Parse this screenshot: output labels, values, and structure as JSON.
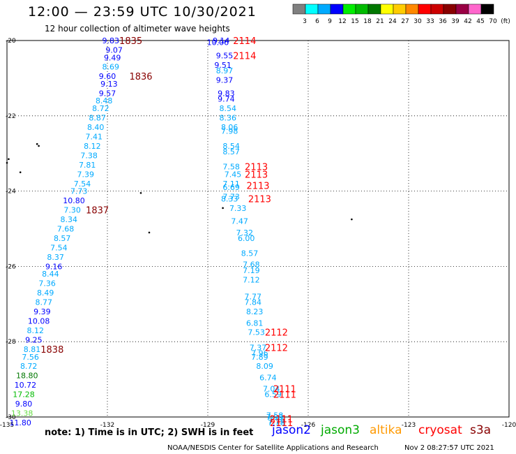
{
  "header": {
    "title": "12:00 — 23:59 UTC 10/30/2021",
    "subtitle": "12 hour collection of altimeter wave heights"
  },
  "colorbar": {
    "labels": [
      "3",
      "6",
      "9",
      "12",
      "15",
      "18",
      "21",
      "24",
      "27",
      "30",
      "33",
      "36",
      "39",
      "42",
      "45",
      "70",
      "(ft)"
    ],
    "colors": [
      "#808080",
      "#00ffff",
      "#00aaff",
      "#0000ff",
      "#00ee00",
      "#00bb00",
      "#007700",
      "#ffff00",
      "#ffcc00",
      "#ff8800",
      "#ff0000",
      "#cc0000",
      "#880000",
      "#990044",
      "#ff66cc",
      "#000000"
    ]
  },
  "footer": {
    "note": "note:  1) Time is in UTC;  2) SWH is in feet",
    "missions": [
      {
        "name": "jason2",
        "color": "#0000ff"
      },
      {
        "name": "jason3",
        "color": "#00aa00"
      },
      {
        "name": "altika",
        "color": "#ff9900"
      },
      {
        "name": "cryosat",
        "color": "#ff0000"
      },
      {
        "name": "s3a",
        "color": "#880000"
      }
    ],
    "credit": "NOAA/NESDIS Center for Satellite Applications and Research",
    "generated": "Nov  2 08:27:57 UTC 2021"
  },
  "chart_data": {
    "type": "scatter",
    "title": "12:00 — 23:59 UTC 10/30/2021",
    "subtitle": "12 hour collection of altimeter wave heights",
    "xlabel": "",
    "ylabel": "",
    "xlim": [
      -135,
      -120
    ],
    "ylim": [
      -30,
      -20
    ],
    "x_ticks": [
      -135,
      -132,
      -129,
      -126,
      -123,
      -120
    ],
    "x_tick_labels": [
      "-135",
      "-132",
      "-129",
      "-126",
      "-123",
      "-120"
    ],
    "y_ticks": [
      -30,
      -28,
      -26,
      -24,
      -22,
      -20
    ],
    "y_tick_labels": [
      "-30",
      "-28",
      "-26",
      "-24",
      "-22",
      "-20"
    ],
    "grid": true,
    "units": "ft",
    "series": [
      {
        "name": "track_west",
        "points": [
          [
            -131.9,
            -20.0,
            "9.83",
            "#0000ff"
          ],
          [
            -131.8,
            -20.25,
            "9.07",
            "#0000ff"
          ],
          [
            -131.85,
            -20.45,
            "9.49",
            "#0000ff"
          ],
          [
            -131.9,
            -20.7,
            "8.69",
            "#00aaff"
          ],
          [
            -132.0,
            -20.95,
            "9.60",
            "#0000ff"
          ],
          [
            -131.95,
            -21.15,
            "9.13",
            "#0000ff"
          ],
          [
            -132.0,
            -21.4,
            "9.57",
            "#0000ff"
          ],
          [
            -132.1,
            -21.6,
            "8.48",
            "#00aaff"
          ],
          [
            -132.2,
            -21.8,
            "8.72",
            "#00aaff"
          ],
          [
            -132.3,
            -22.05,
            "8.87",
            "#00aaff"
          ],
          [
            -132.35,
            -22.3,
            "8.40",
            "#00aaff"
          ],
          [
            -132.4,
            -22.55,
            "7.41",
            "#00aaff"
          ],
          [
            -132.45,
            -22.8,
            "8.12",
            "#00aaff"
          ],
          [
            -132.55,
            -23.05,
            "7.38",
            "#00aaff"
          ],
          [
            -132.6,
            -23.3,
            "7.81",
            "#00aaff"
          ],
          [
            -132.65,
            -23.55,
            "7.39",
            "#00aaff"
          ],
          [
            -132.75,
            -23.8,
            "7.54",
            "#00aaff"
          ],
          [
            -132.85,
            -24.0,
            "7.73",
            "#00aaff"
          ],
          [
            -133.0,
            -24.25,
            "10.80",
            "#0000ff"
          ],
          [
            -133.05,
            -24.5,
            "7.30",
            "#00aaff"
          ],
          [
            -133.15,
            -24.75,
            "8.34",
            "#00aaff"
          ],
          [
            -133.25,
            -25.0,
            "7.68",
            "#00aaff"
          ],
          [
            -133.35,
            -25.25,
            "8.57",
            "#00aaff"
          ],
          [
            -133.45,
            -25.5,
            "7.54",
            "#00aaff"
          ],
          [
            -133.55,
            -25.75,
            "8.37",
            "#00aaff"
          ],
          [
            -133.6,
            -26.0,
            "9.16",
            "#0000ff"
          ],
          [
            -133.7,
            -26.2,
            "8.44",
            "#00aaff"
          ],
          [
            -133.8,
            -26.45,
            "7.36",
            "#00aaff"
          ],
          [
            -133.85,
            -26.7,
            "8.49",
            "#00aaff"
          ],
          [
            -133.9,
            -26.95,
            "8.77",
            "#00aaff"
          ],
          [
            -133.95,
            -27.2,
            "9.39",
            "#0000ff"
          ],
          [
            -134.05,
            -27.45,
            "10.08",
            "#0000ff"
          ],
          [
            -134.15,
            -27.7,
            "8.12",
            "#00aaff"
          ],
          [
            -134.2,
            -27.95,
            "9.25",
            "#0000ff"
          ],
          [
            -134.25,
            -28.2,
            "8.81",
            "#00aaff"
          ],
          [
            -134.3,
            -28.4,
            "7.56",
            "#00aaff"
          ],
          [
            -134.35,
            -28.65,
            "8.72",
            "#00aaff"
          ],
          [
            -134.4,
            -28.9,
            "18.80",
            "#007700"
          ],
          [
            -134.45,
            -29.15,
            "10.72",
            "#0000ff"
          ],
          [
            -134.5,
            -29.4,
            "17.28",
            "#00bb00"
          ],
          [
            -134.5,
            -29.65,
            "9.80",
            "#0000ff"
          ],
          [
            -134.55,
            -29.9,
            "13.38",
            "#66dd44"
          ],
          [
            -134.6,
            -30.15,
            "11.80",
            "#0000ff"
          ]
        ]
      },
      {
        "name": "track_east",
        "points": [
          [
            -128.6,
            -20.0,
            "9.14",
            "#0000ff"
          ],
          [
            -128.7,
            -20.05,
            "10.06",
            "#0000ff"
          ],
          [
            -128.5,
            -20.4,
            "9.55",
            "#0000ff"
          ],
          [
            -128.55,
            -20.65,
            "9.51",
            "#0000ff"
          ],
          [
            -128.5,
            -20.8,
            "8.97",
            "#00aaff"
          ],
          [
            -128.5,
            -21.05,
            "9.37",
            "#0000ff"
          ],
          [
            -128.45,
            -21.4,
            "9.83",
            "#0000ff"
          ],
          [
            -128.45,
            -21.55,
            "9.74",
            "#0000ff"
          ],
          [
            -128.4,
            -21.8,
            "8.54",
            "#00aaff"
          ],
          [
            -128.4,
            -22.05,
            "8.36",
            "#00aaff"
          ],
          [
            -128.35,
            -22.3,
            "8.06",
            "#00aaff"
          ],
          [
            -128.35,
            -22.4,
            "7.98",
            "#00aaff"
          ],
          [
            -128.3,
            -22.8,
            "8.54",
            "#00aaff"
          ],
          [
            -128.3,
            -22.95,
            "8.57",
            "#00aaff"
          ],
          [
            -128.3,
            -23.35,
            "7.58",
            "#00aaff"
          ],
          [
            -128.25,
            -23.55,
            "7.45",
            "#00aaff"
          ],
          [
            -128.3,
            -23.8,
            "7.11",
            "#00aaff"
          ],
          [
            -128.3,
            -23.9,
            "6.69",
            "#00aaff"
          ],
          [
            -128.3,
            -24.15,
            "7.73",
            "#00aaff"
          ],
          [
            -128.35,
            -24.2,
            "8.33",
            "#00aaff"
          ],
          [
            -128.1,
            -24.45,
            "7.33",
            "#00aaff"
          ],
          [
            -128.05,
            -24.8,
            "7.47",
            "#00aaff"
          ],
          [
            -127.9,
            -25.1,
            "7.32",
            "#00aaff"
          ],
          [
            -127.85,
            -25.25,
            "6.00",
            "#00aaff"
          ],
          [
            -127.75,
            -25.65,
            "8.57",
            "#00aaff"
          ],
          [
            -127.7,
            -25.95,
            "7.68",
            "#00aaff"
          ],
          [
            -127.7,
            -26.1,
            "7.19",
            "#00aaff"
          ],
          [
            -127.7,
            -26.35,
            "7.12",
            "#00aaff"
          ],
          [
            -127.65,
            -26.8,
            "7.77",
            "#00aaff"
          ],
          [
            -127.65,
            -26.95,
            "7.84",
            "#00aaff"
          ],
          [
            -127.6,
            -27.2,
            "8.23",
            "#00aaff"
          ],
          [
            -127.6,
            -27.5,
            "6.81",
            "#00aaff"
          ],
          [
            -127.55,
            -27.75,
            "7.53",
            "#00aaff"
          ],
          [
            -127.5,
            -28.15,
            "7.37",
            "#00aaff"
          ],
          [
            -127.45,
            -28.3,
            "7.96",
            "#00aaff"
          ],
          [
            -127.45,
            -28.4,
            "7.89",
            "#00aaff"
          ],
          [
            -127.3,
            -28.65,
            "8.09",
            "#00aaff"
          ],
          [
            -127.2,
            -28.95,
            "6.74",
            "#00aaff"
          ],
          [
            -127.1,
            -29.25,
            "7.04",
            "#00aaff"
          ],
          [
            -127.05,
            -29.4,
            "6.59",
            "#00aaff"
          ],
          [
            -127.0,
            -29.95,
            "7.58",
            "#00aaff"
          ],
          [
            -127.0,
            -30.0,
            "7.93",
            "#00aaff"
          ],
          [
            -126.95,
            -30.1,
            "7.79",
            "#00aaff"
          ],
          [
            -126.95,
            -30.15,
            "7.78",
            "#00aaff"
          ]
        ]
      }
    ],
    "time_labels": [
      [
        -131.3,
        -20.0,
        "1835",
        "#880000"
      ],
      [
        -131.0,
        -20.95,
        "1836",
        "#880000"
      ],
      [
        -132.3,
        -24.5,
        "1837",
        "#880000"
      ],
      [
        -133.65,
        -28.2,
        "1838",
        "#880000"
      ],
      [
        -127.9,
        -20.0,
        "2114",
        "#ff0000"
      ],
      [
        -127.9,
        -20.4,
        "2114",
        "#ff0000"
      ],
      [
        -127.55,
        -23.35,
        "2113",
        "#ff0000"
      ],
      [
        -127.55,
        -23.55,
        "2113",
        "#ff0000"
      ],
      [
        -127.5,
        -23.85,
        "2113",
        "#ff0000"
      ],
      [
        -127.45,
        -24.2,
        "2113",
        "#ff0000"
      ],
      [
        -126.95,
        -27.75,
        "2112",
        "#ff0000"
      ],
      [
        -126.95,
        -28.15,
        "2112",
        "#ff0000"
      ],
      [
        -126.7,
        -29.25,
        "2111",
        "#ff0000"
      ],
      [
        -126.7,
        -29.4,
        "2111",
        "#ff0000"
      ],
      [
        -126.8,
        -30.05,
        "2111",
        "#ff0000"
      ],
      [
        -126.8,
        -30.15,
        "2111",
        "#ff0000"
      ]
    ],
    "land_points": [
      [
        -134.95,
        -23.15
      ],
      [
        -135.0,
        -23.25
      ],
      [
        -134.6,
        -23.5
      ],
      [
        -134.1,
        -22.75
      ],
      [
        -134.05,
        -22.8
      ],
      [
        -131.0,
        -24.05
      ],
      [
        -130.75,
        -25.1
      ],
      [
        -128.55,
        -24.45
      ],
      [
        -124.7,
        -24.75
      ]
    ]
  }
}
